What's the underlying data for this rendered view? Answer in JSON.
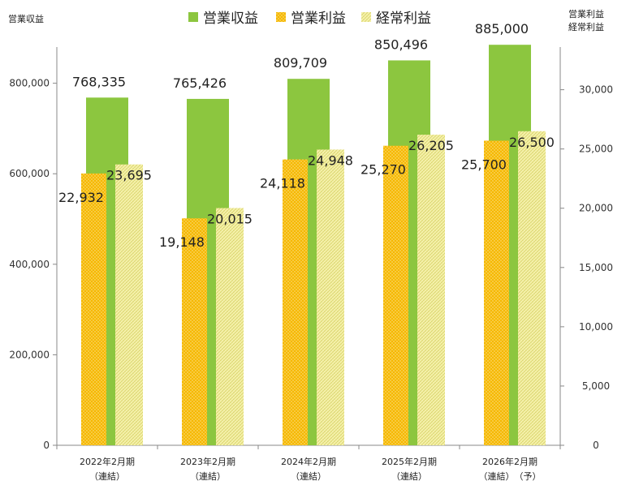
{
  "chart_data": {
    "type": "bar",
    "categories": [
      [
        "2022年2月期",
        "（連結）"
      ],
      [
        "2023年2月期",
        "（連結）"
      ],
      [
        "2024年2月期",
        "（連結）"
      ],
      [
        "2025年2月期",
        "（連結）"
      ],
      [
        "2026年2月期",
        "（連結）　（予）"
      ]
    ],
    "series": [
      {
        "name": "営業収益",
        "axis": "left",
        "color": "#8cc63f",
        "values": [
          768335,
          765426,
          809709,
          850496,
          885000
        ],
        "labels": [
          "768,335",
          "765,426",
          "809,709",
          "850,496",
          "885,000"
        ]
      },
      {
        "name": "営業利益",
        "axis": "right",
        "color": "#f5b800",
        "values": [
          22932,
          19148,
          24118,
          25270,
          25700
        ],
        "labels": [
          "22,932",
          "19,148",
          "24,118",
          "25,270",
          "25,700"
        ]
      },
      {
        "name": "経常利益",
        "axis": "right",
        "color": "#f2ef9c",
        "values": [
          23695,
          20015,
          24948,
          26205,
          26500
        ],
        "labels": [
          "23,695",
          "20,015",
          "24,948",
          "26,205",
          "26,500"
        ]
      }
    ],
    "y_left": {
      "label": "営業収益",
      "ylim": [
        0,
        880000
      ],
      "ticks": [
        0,
        200000,
        400000,
        600000,
        800000
      ],
      "tick_labels": [
        "0",
        "200,000",
        "400,000",
        "600,000",
        "800,000"
      ]
    },
    "y_right": {
      "label_lines": [
        "営業利益",
        "経常利益"
      ],
      "ylim": [
        0,
        33600
      ],
      "ticks": [
        0,
        5000,
        10000,
        15000,
        20000,
        25000,
        30000
      ],
      "tick_labels": [
        "0",
        "5,000",
        "10,000",
        "15,000",
        "20,000",
        "25,000",
        "30,000"
      ]
    },
    "legend": {
      "placement": "top-center"
    },
    "grid": false
  }
}
